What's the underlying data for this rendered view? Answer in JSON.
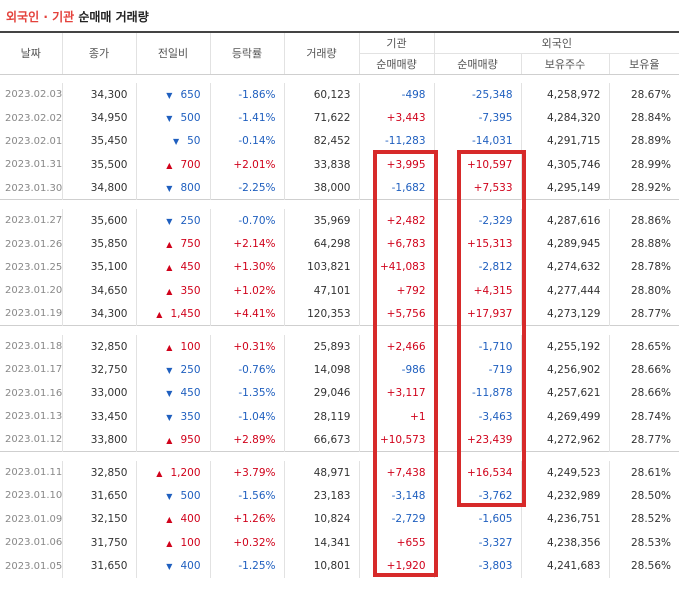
{
  "title": {
    "part1": "외국인",
    "sep": "·",
    "part2": "기관",
    "part3": "순매매 거래량"
  },
  "headers": {
    "date": "날짜",
    "close": "종가",
    "change": "전일비",
    "rate": "등락률",
    "volume": "거래량",
    "inst_group": "기관",
    "foreign_group": "외국인",
    "inst_net": "순매매량",
    "foreign_net": "순매매량",
    "holdings": "보유주수",
    "ratio": "보유율"
  },
  "colors": {
    "up": "#d0021b",
    "down": "#1f5fbf",
    "highlight_box": "#d72a2a"
  },
  "groups": [
    [
      {
        "date": "2023.02.03",
        "close": "34,300",
        "dir": "down",
        "chg": "650",
        "rate": "-1.86%",
        "vol": "60,123",
        "inst": "-498",
        "foreign": "-25,348",
        "hold": "4,258,972",
        "ratio": "28.67%"
      },
      {
        "date": "2023.02.02",
        "close": "34,950",
        "dir": "down",
        "chg": "500",
        "rate": "-1.41%",
        "vol": "71,622",
        "inst": "+3,443",
        "foreign": "-7,395",
        "hold": "4,284,320",
        "ratio": "28.84%"
      },
      {
        "date": "2023.02.01",
        "close": "35,450",
        "dir": "down",
        "chg": "50",
        "rate": "-0.14%",
        "vol": "82,452",
        "inst": "-11,283",
        "foreign": "-14,031",
        "hold": "4,291,715",
        "ratio": "28.89%"
      },
      {
        "date": "2023.01.31",
        "close": "35,500",
        "dir": "up",
        "chg": "700",
        "rate": "+2.01%",
        "vol": "33,838",
        "inst": "+3,995",
        "foreign": "+10,597",
        "hold": "4,305,746",
        "ratio": "28.99%"
      },
      {
        "date": "2023.01.30",
        "close": "34,800",
        "dir": "down",
        "chg": "800",
        "rate": "-2.25%",
        "vol": "38,000",
        "inst": "-1,682",
        "foreign": "+7,533",
        "hold": "4,295,149",
        "ratio": "28.92%"
      }
    ],
    [
      {
        "date": "2023.01.27",
        "close": "35,600",
        "dir": "down",
        "chg": "250",
        "rate": "-0.70%",
        "vol": "35,969",
        "inst": "+2,482",
        "foreign": "-2,329",
        "hold": "4,287,616",
        "ratio": "28.86%"
      },
      {
        "date": "2023.01.26",
        "close": "35,850",
        "dir": "up",
        "chg": "750",
        "rate": "+2.14%",
        "vol": "64,298",
        "inst": "+6,783",
        "foreign": "+15,313",
        "hold": "4,289,945",
        "ratio": "28.88%"
      },
      {
        "date": "2023.01.25",
        "close": "35,100",
        "dir": "up",
        "chg": "450",
        "rate": "+1.30%",
        "vol": "103,821",
        "inst": "+41,083",
        "foreign": "-2,812",
        "hold": "4,274,632",
        "ratio": "28.78%"
      },
      {
        "date": "2023.01.20",
        "close": "34,650",
        "dir": "up",
        "chg": "350",
        "rate": "+1.02%",
        "vol": "47,101",
        "inst": "+792",
        "foreign": "+4,315",
        "hold": "4,277,444",
        "ratio": "28.80%"
      },
      {
        "date": "2023.01.19",
        "close": "34,300",
        "dir": "up",
        "chg": "1,450",
        "rate": "+4.41%",
        "vol": "120,353",
        "inst": "+5,756",
        "foreign": "+17,937",
        "hold": "4,273,129",
        "ratio": "28.77%"
      }
    ],
    [
      {
        "date": "2023.01.18",
        "close": "32,850",
        "dir": "up",
        "chg": "100",
        "rate": "+0.31%",
        "vol": "25,893",
        "inst": "+2,466",
        "foreign": "-1,710",
        "hold": "4,255,192",
        "ratio": "28.65%"
      },
      {
        "date": "2023.01.17",
        "close": "32,750",
        "dir": "down",
        "chg": "250",
        "rate": "-0.76%",
        "vol": "14,098",
        "inst": "-986",
        "foreign": "-719",
        "hold": "4,256,902",
        "ratio": "28.66%"
      },
      {
        "date": "2023.01.16",
        "close": "33,000",
        "dir": "down",
        "chg": "450",
        "rate": "-1.35%",
        "vol": "29,046",
        "inst": "+3,117",
        "foreign": "-11,878",
        "hold": "4,257,621",
        "ratio": "28.66%"
      },
      {
        "date": "2023.01.13",
        "close": "33,450",
        "dir": "down",
        "chg": "350",
        "rate": "-1.04%",
        "vol": "28,119",
        "inst": "+1",
        "foreign": "-3,463",
        "hold": "4,269,499",
        "ratio": "28.74%"
      },
      {
        "date": "2023.01.12",
        "close": "33,800",
        "dir": "up",
        "chg": "950",
        "rate": "+2.89%",
        "vol": "66,673",
        "inst": "+10,573",
        "foreign": "+23,439",
        "hold": "4,272,962",
        "ratio": "28.77%"
      }
    ],
    [
      {
        "date": "2023.01.11",
        "close": "32,850",
        "dir": "up",
        "chg": "1,200",
        "rate": "+3.79%",
        "vol": "48,971",
        "inst": "+7,438",
        "foreign": "+16,534",
        "hold": "4,249,523",
        "ratio": "28.61%"
      },
      {
        "date": "2023.01.10",
        "close": "31,650",
        "dir": "down",
        "chg": "500",
        "rate": "-1.56%",
        "vol": "23,183",
        "inst": "-3,148",
        "foreign": "-3,762",
        "hold": "4,232,989",
        "ratio": "28.50%"
      },
      {
        "date": "2023.01.09",
        "close": "32,150",
        "dir": "up",
        "chg": "400",
        "rate": "+1.26%",
        "vol": "10,824",
        "inst": "-2,729",
        "foreign": "-1,605",
        "hold": "4,236,751",
        "ratio": "28.52%"
      },
      {
        "date": "2023.01.06",
        "close": "31,750",
        "dir": "up",
        "chg": "100",
        "rate": "+0.32%",
        "vol": "14,341",
        "inst": "+655",
        "foreign": "-3,327",
        "hold": "4,238,356",
        "ratio": "28.53%"
      },
      {
        "date": "2023.01.05",
        "close": "31,650",
        "dir": "down",
        "chg": "400",
        "rate": "-1.25%",
        "vol": "10,801",
        "inst": "+1,920",
        "foreign": "-3,803",
        "hold": "4,241,683",
        "ratio": "28.56%"
      }
    ]
  ]
}
